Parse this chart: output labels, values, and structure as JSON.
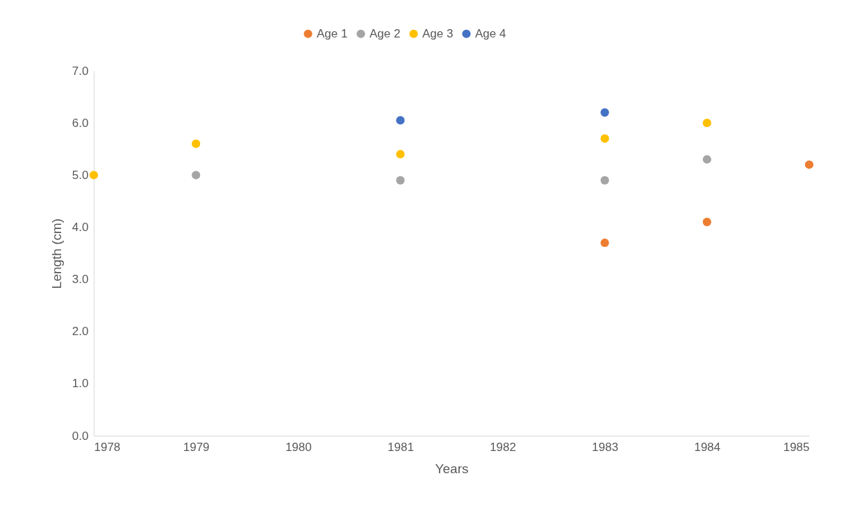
{
  "chart_data": {
    "type": "scatter",
    "xlabel": "Years",
    "ylabel": "Length (cm)",
    "xlim": [
      1978,
      1985
    ],
    "xticks": [
      1978,
      1979,
      1980,
      1981,
      1982,
      1983,
      1984,
      1985
    ],
    "ylim": [
      0,
      7
    ],
    "yticks": [
      {
        "value": 0,
        "label": "0.0"
      },
      {
        "value": 1,
        "label": "1.0"
      },
      {
        "value": 2,
        "label": "2.0"
      },
      {
        "value": 3,
        "label": "3.0"
      },
      {
        "value": 4,
        "label": "4.0"
      },
      {
        "value": 5,
        "label": "5.0"
      },
      {
        "value": 6,
        "label": "6.0"
      },
      {
        "value": 7,
        "label": "7.0"
      }
    ],
    "legend": "top",
    "marker": "circle",
    "series": [
      {
        "name": "Age 1",
        "color": "#ed7d31",
        "x": [
          1983,
          1984,
          1985
        ],
        "values": [
          3.7,
          4.1,
          5.2
        ]
      },
      {
        "name": "Age 2",
        "color": "#a5a5a5",
        "x": [
          1979,
          1981,
          1983,
          1984
        ],
        "values": [
          5.0,
          4.9,
          4.9,
          5.3
        ]
      },
      {
        "name": "Age 3",
        "color": "#ffc000",
        "x": [
          1978,
          1979,
          1981,
          1983,
          1984
        ],
        "values": [
          5.0,
          5.6,
          5.4,
          5.7,
          6.0
        ]
      },
      {
        "name": "Age 4",
        "color": "#4472c4",
        "x": [
          1981,
          1983
        ],
        "values": [
          6.05,
          6.2
        ]
      }
    ]
  }
}
